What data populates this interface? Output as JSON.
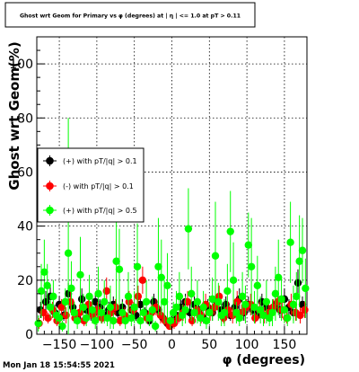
{
  "footer": {
    "timestamp": "Mon Jan 18 15:54:55 2021"
  },
  "chart_data": {
    "type": "scatter",
    "title": "Ghost wrt Geom for Primary vs φ (degrees) at | η | <= 1.0 at pT > 0.11",
    "xlabel": "φ (degrees)",
    "ylabel": "Ghost wrt Geom(%)",
    "xlim": [
      -180,
      180
    ],
    "ylim": [
      0,
      110
    ],
    "x_ticks": [
      -150,
      -100,
      -50,
      0,
      50,
      100,
      150
    ],
    "y_ticks": [
      0,
      20,
      40,
      60,
      80,
      100
    ],
    "grid": true,
    "legend_position": "left-middle",
    "colors": {
      "black": "#000000",
      "red": "#ff0000",
      "green": "#00ff00"
    },
    "series": [
      {
        "name": "(+) with pT/|q| > 0.1",
        "color": "#000000",
        "x": [
          -175,
          -168,
          -162,
          -156,
          -150,
          -144,
          -138,
          -132,
          -126,
          -120,
          -114,
          -108,
          -102,
          -96,
          -90,
          -84,
          -78,
          -72,
          -66,
          -60,
          -54,
          -48,
          -42,
          -36,
          -30,
          -24,
          -18,
          -12,
          -6,
          0,
          6,
          12,
          18,
          24,
          30,
          36,
          42,
          48,
          54,
          60,
          66,
          72,
          78,
          84,
          90,
          96,
          102,
          108,
          114,
          120,
          126,
          132,
          138,
          144,
          150,
          156,
          162,
          168,
          174
        ],
        "y": [
          9,
          12,
          14,
          8,
          11,
          7,
          15,
          10,
          6,
          13,
          9,
          8,
          12,
          10,
          7,
          9,
          11,
          8,
          10,
          6,
          9,
          7,
          11,
          8,
          5,
          12,
          9,
          6,
          4,
          5,
          7,
          10,
          12,
          8,
          11,
          9,
          6,
          10,
          8,
          12,
          9,
          11,
          7,
          10,
          13,
          8,
          11,
          9,
          7,
          12,
          10,
          8,
          11,
          9,
          13,
          10,
          8,
          19,
          11
        ],
        "err": [
          3,
          4,
          4,
          3,
          3,
          2,
          4,
          3,
          2,
          4,
          3,
          3,
          3,
          3,
          2,
          3,
          3,
          2,
          3,
          2,
          3,
          2,
          3,
          2,
          2,
          3,
          3,
          2,
          2,
          2,
          2,
          3,
          3,
          3,
          3,
          3,
          2,
          3,
          3,
          3,
          3,
          3,
          2,
          3,
          4,
          3,
          3,
          3,
          2,
          3,
          3,
          3,
          3,
          3,
          4,
          3,
          3,
          5,
          3
        ]
      },
      {
        "name": "(-) with pT/|q| > 0.1",
        "color": "#ff0000",
        "x": [
          -177,
          -171,
          -165,
          -159,
          -153,
          -147,
          -141,
          -135,
          -129,
          -123,
          -117,
          -111,
          -105,
          -99,
          -93,
          -87,
          -81,
          -75,
          -69,
          -63,
          -57,
          -51,
          -45,
          -39,
          -33,
          -27,
          -21,
          -15,
          -9,
          -3,
          3,
          9,
          15,
          21,
          27,
          33,
          39,
          45,
          51,
          57,
          63,
          69,
          75,
          81,
          87,
          93,
          99,
          105,
          111,
          117,
          123,
          129,
          135,
          141,
          147,
          153,
          159,
          165,
          171,
          177
        ],
        "y": [
          4,
          8,
          6,
          9,
          5,
          10,
          7,
          12,
          6,
          8,
          5,
          11,
          7,
          9,
          6,
          16,
          8,
          10,
          5,
          7,
          12,
          9,
          14,
          20,
          6,
          8,
          10,
          7,
          5,
          3,
          4,
          6,
          8,
          12,
          5,
          9,
          7,
          11,
          8,
          10,
          14,
          6,
          9,
          7,
          12,
          8,
          10,
          11,
          6,
          9,
          7,
          8,
          10,
          12,
          9,
          6,
          11,
          8,
          7,
          9
        ],
        "err": [
          2,
          3,
          2,
          3,
          2,
          3,
          3,
          4,
          2,
          3,
          2,
          4,
          3,
          3,
          2,
          5,
          3,
          3,
          2,
          3,
          4,
          3,
          4,
          5,
          2,
          3,
          3,
          3,
          2,
          1,
          2,
          2,
          3,
          4,
          2,
          3,
          3,
          4,
          3,
          3,
          4,
          2,
          3,
          3,
          4,
          3,
          3,
          4,
          2,
          3,
          3,
          3,
          3,
          4,
          3,
          2,
          4,
          3,
          3,
          3
        ]
      },
      {
        "name": "(+) with pT/|q| > 0.5",
        "color": "#00ff00",
        "x": [
          -178,
          -174,
          -170,
          -166,
          -162,
          -158,
          -154,
          -150,
          -146,
          -142,
          -138,
          -134,
          -130,
          -126,
          -122,
          -118,
          -114,
          -110,
          -106,
          -102,
          -98,
          -94,
          -90,
          -86,
          -82,
          -78,
          -74,
          -70,
          -66,
          -62,
          -58,
          -54,
          -50,
          -46,
          -42,
          -38,
          -34,
          -30,
          -26,
          -22,
          -18,
          -14,
          -10,
          -6,
          -2,
          2,
          6,
          10,
          14,
          18,
          22,
          26,
          30,
          34,
          38,
          42,
          46,
          50,
          54,
          58,
          62,
          66,
          70,
          74,
          78,
          82,
          86,
          90,
          94,
          98,
          102,
          106,
          110,
          114,
          118,
          122,
          126,
          130,
          134,
          138,
          142,
          146,
          150,
          154,
          158,
          162,
          166,
          170,
          174,
          178
        ],
        "y": [
          4,
          16,
          23,
          18,
          10,
          14,
          7,
          6,
          3,
          12,
          30,
          17,
          8,
          5,
          22,
          10,
          6,
          14,
          9,
          5,
          15,
          8,
          12,
          6,
          10,
          5,
          27,
          24,
          8,
          5,
          14,
          6,
          10,
          25,
          5,
          8,
          12,
          6,
          9,
          3,
          25,
          21,
          12,
          18,
          5,
          8,
          10,
          14,
          7,
          9,
          39,
          15,
          8,
          12,
          6,
          10,
          5,
          8,
          13,
          29,
          12,
          7,
          8,
          16,
          38,
          20,
          8,
          6,
          14,
          11,
          33,
          25,
          10,
          18,
          9,
          7,
          12,
          6,
          8,
          15,
          21,
          13,
          9,
          6,
          34,
          11,
          14,
          27,
          31,
          17
        ],
        "err": [
          3,
          10,
          12,
          8,
          4,
          6,
          3,
          3,
          2,
          5,
          50,
          10,
          4,
          3,
          14,
          5,
          3,
          8,
          5,
          3,
          10,
          4,
          8,
          3,
          8,
          3,
          18,
          15,
          4,
          3,
          9,
          3,
          6,
          16,
          3,
          4,
          8,
          3,
          5,
          2,
          18,
          14,
          8,
          12,
          3,
          4,
          6,
          9,
          4,
          5,
          15,
          10,
          4,
          8,
          3,
          6,
          3,
          4,
          8,
          20,
          7,
          4,
          5,
          10,
          15,
          14,
          4,
          3,
          9,
          7,
          12,
          18,
          6,
          11,
          5,
          4,
          8,
          3,
          5,
          10,
          14,
          8,
          5,
          3,
          15,
          7,
          9,
          17,
          12,
          11
        ]
      }
    ]
  }
}
